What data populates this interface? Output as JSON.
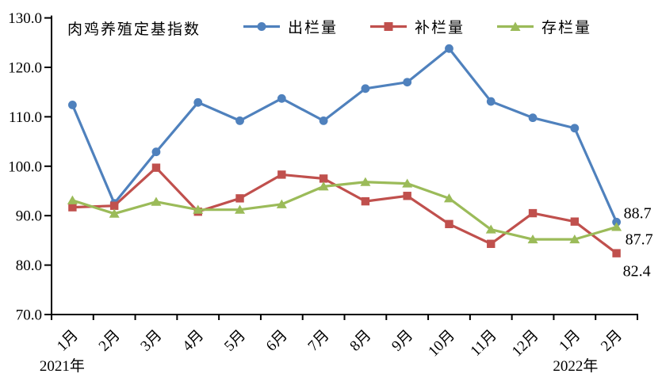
{
  "chart_data": {
    "type": "line",
    "title": "肉鸡养殖定基指数",
    "x_categories": [
      "1月",
      "2月",
      "3月",
      "4月",
      "5月",
      "6月",
      "7月",
      "8月",
      "9月",
      "10月",
      "11月",
      "12月",
      "1月",
      "2月"
    ],
    "x_year_labels": [
      {
        "label": "2021年",
        "index": 0
      },
      {
        "label": "2022年",
        "index": 12
      }
    ],
    "ylim": [
      70,
      130
    ],
    "y_tick_labels": [
      "70.0",
      "80.0",
      "90.0",
      "100.0",
      "110.0",
      "120.0",
      "130.0"
    ],
    "grid": false,
    "legend_position": "top",
    "axis_color": "#000000",
    "series": [
      {
        "name": "出栏量",
        "marker": "circle",
        "color": "#4F81BD",
        "values": [
          112.4,
          92.5,
          102.9,
          112.9,
          109.2,
          113.7,
          109.2,
          115.7,
          117.0,
          123.8,
          113.1,
          109.8,
          107.7,
          88.7
        ]
      },
      {
        "name": "补栏量",
        "marker": "square",
        "color": "#C0504D",
        "values": [
          91.7,
          92.0,
          99.7,
          90.8,
          93.5,
          98.3,
          97.5,
          92.9,
          94.0,
          88.3,
          84.3,
          90.5,
          88.8,
          82.4
        ]
      },
      {
        "name": "存栏量",
        "marker": "triangle",
        "color": "#9BBB59",
        "values": [
          93.1,
          90.4,
          92.8,
          91.2,
          91.2,
          92.3,
          95.9,
          96.8,
          96.5,
          93.5,
          87.2,
          85.2,
          85.2,
          87.7
        ]
      }
    ],
    "end_labels": [
      {
        "text": "88.7",
        "series": "出栏量"
      },
      {
        "text": "87.7",
        "series": "存栏量"
      },
      {
        "text": "82.4",
        "series": "补栏量"
      }
    ]
  }
}
